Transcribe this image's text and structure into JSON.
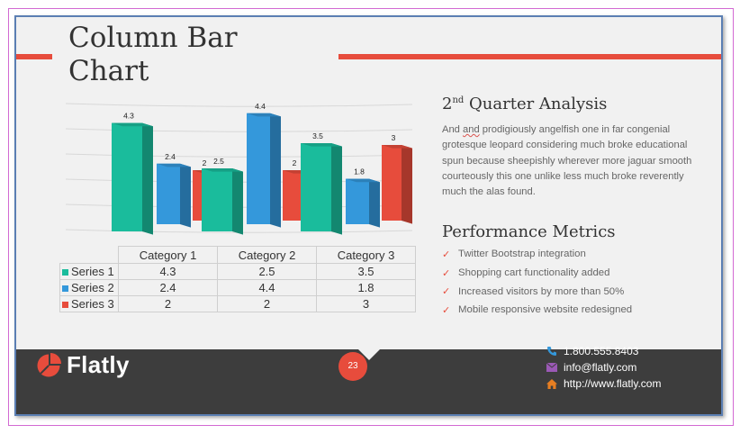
{
  "slide": {
    "title_line1": "Column Bar",
    "title_line2": "Chart",
    "analysis_heading_pre": "2",
    "analysis_heading_sup": "nd",
    "analysis_heading_post": " Quarter  Analysis",
    "analysis_text_pre": "And ",
    "analysis_text_flagged": "and",
    "analysis_text_post": " prodigiously angelfish one in far congenial grotesque leopard considering much broke educational spun because sheepishly wherever more jaguar smooth courteously this one unlike less much broke reverently much the alas found.",
    "metrics_heading": "Performance  Metrics",
    "metrics": [
      "Twitter Bootstrap integration",
      "Shopping cart functionality added",
      "Increased visitors by more than 50%",
      "Mobile responsive website redesigned"
    ]
  },
  "chart_data": {
    "type": "bar",
    "categories": [
      "Category 1",
      "Category 2",
      "Category 3"
    ],
    "series": [
      {
        "name": "Series 1",
        "values": [
          4.3,
          2.5,
          3.5
        ],
        "color": "#1abc9c"
      },
      {
        "name": "Series 2",
        "values": [
          2.4,
          4.4,
          1.8
        ],
        "color": "#3498db"
      },
      {
        "name": "Series 3",
        "values": [
          2,
          2,
          3
        ],
        "color": "#e74c3c"
      }
    ],
    "value_labels": [
      [
        "4.3",
        "2.5",
        "3.5"
      ],
      [
        "2.4",
        "4.4",
        "1.8"
      ],
      [
        "2",
        "2",
        "3"
      ]
    ],
    "ylim": [
      0,
      5
    ],
    "grid": true,
    "style": "3d-column",
    "data_table": true
  },
  "footer": {
    "brand": "Flatly",
    "page_number": "23",
    "phone": "1.800.555.8403",
    "email": "info@flatly.com",
    "website": "http://www.flatly.com"
  },
  "colors": {
    "accent_red": "#e74c3c",
    "teal": "#1abc9c",
    "blue": "#3498db",
    "footer_bg": "#3d3d3d",
    "slide_bg": "#f1f1f1"
  },
  "icons": [
    "pie-logo-icon",
    "phone-icon",
    "envelope-icon",
    "home-icon",
    "check-icon"
  ]
}
